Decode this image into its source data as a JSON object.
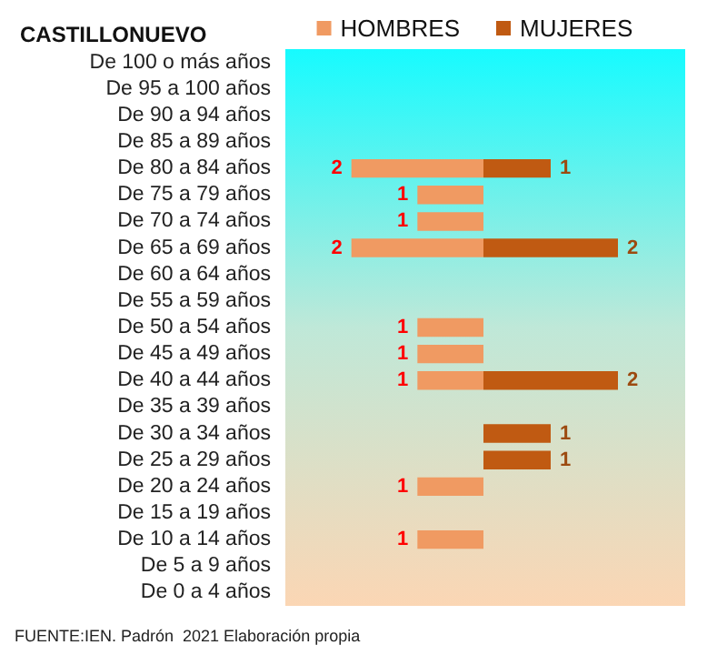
{
  "chart_data": [
    {
      "type": "bar",
      "orientation": "horizontal",
      "title": "CASTILLONUEVO",
      "categories": [
        "De 100 o más años",
        "De 95 a 100 años",
        "De 90 a 94 años",
        "De 85 a 89 años",
        "De 80 a 84 años",
        "De 75 a 79 años",
        "De 70 a 74 años",
        "De 65 a 69 años",
        "De 60 a 64 años",
        "De 55 a 59 años",
        "De 50 a 54 años",
        "De 45 a 49 años",
        "De 40 a 44 años",
        "De 35 a 39 años",
        "De 30 a 34 años",
        "De 25 a 29 años",
        "De 20 a 24 años",
        "De 15 a 19 años",
        "De 10 a 14 años",
        "De 5 a 9 años",
        "De 0 a 4 años"
      ],
      "series": [
        {
          "name": "HOMBRES",
          "color": "#f09a62",
          "values": [
            null,
            null,
            null,
            null,
            2,
            1,
            1,
            2,
            null,
            null,
            1,
            1,
            1,
            null,
            null,
            null,
            1,
            null,
            1,
            null,
            null
          ]
        }
      ],
      "xlim": [
        3,
        0
      ],
      "tick_labels": "y",
      "data_labels": true,
      "legend": "top right",
      "annotations": [
        "FUENTE:IEN. Padrón  2021 Elaboración propia"
      ]
    },
    {
      "type": "bar",
      "orientation": "horizontal",
      "categories": [
        null,
        null,
        null,
        null,
        null,
        null,
        null,
        null,
        null,
        null,
        null,
        null,
        null,
        null,
        null,
        null,
        null,
        null,
        null,
        null,
        null
      ],
      "series": [
        {
          "name": "MUJERES",
          "color": "#c05a12",
          "values": [
            null,
            null,
            null,
            null,
            1,
            null,
            null,
            2,
            null,
            null,
            null,
            null,
            2,
            null,
            1,
            1,
            null,
            null,
            null,
            null,
            null
          ]
        }
      ],
      "xlim": [
        0,
        3
      ],
      "tick_labels": false,
      "data_labels": true,
      "legend": "top left"
    }
  ]
}
